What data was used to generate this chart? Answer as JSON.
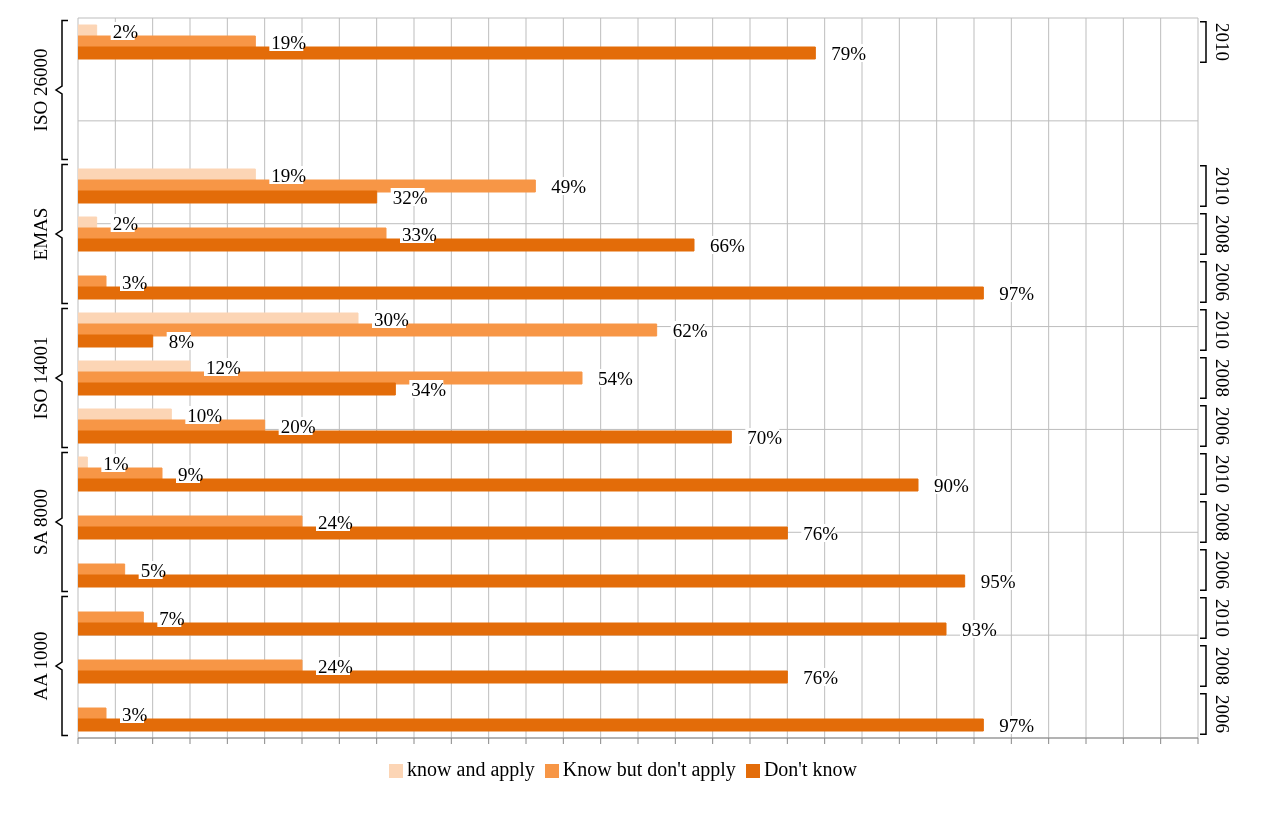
{
  "chart_data": {
    "type": "bar",
    "orientation": "horizontal",
    "categories": [
      "2010",
      null,
      null,
      "2010",
      "2008",
      "2006",
      "2010",
      "2008",
      "2006",
      "2010",
      "2008",
      "2006",
      "2010",
      "2008",
      "2006"
    ],
    "annotations": [
      "ISO 26000",
      "EMAS",
      "ISO 14001",
      "SA 8000",
      "AA 1000"
    ],
    "series": [
      {
        "name": "know and apply",
        "color": "#fcd5b5",
        "values": [
          2,
          null,
          null,
          19,
          2,
          null,
          30,
          12,
          10,
          1,
          null,
          null,
          null,
          null,
          null
        ],
        "value_labels": [
          "2%",
          null,
          null,
          "19%",
          "2%",
          null,
          "30%",
          "12%",
          "10%",
          "1%",
          null,
          null,
          null,
          null,
          null
        ]
      },
      {
        "name": "Know but don't apply",
        "color": "#f79646",
        "values": [
          19,
          null,
          null,
          49,
          33,
          3,
          62,
          54,
          20,
          9,
          24,
          5,
          7,
          24,
          3
        ],
        "value_labels": [
          "19%",
          null,
          null,
          "49%",
          "33%",
          "3%",
          "62%",
          "54%",
          "20%",
          "9%",
          "24%",
          "5%",
          "7%",
          "24%",
          "3%"
        ]
      },
      {
        "name": "Don't know",
        "color": "#e36c09",
        "values": [
          79,
          null,
          null,
          32,
          66,
          97,
          8,
          34,
          70,
          90,
          76,
          95,
          93,
          76,
          97
        ],
        "value_labels": [
          "79%",
          null,
          null,
          "32%",
          "66%",
          "97%",
          "8%",
          "34%",
          "70%",
          "90%",
          "76%",
          "95%",
          "93%",
          "76%",
          "97%"
        ]
      }
    ],
    "xlim": [
      0,
      120
    ],
    "xticks": [
      {
        "value": 0,
        "label": null
      },
      {
        "value": 4,
        "label": null
      },
      {
        "value": 8,
        "label": null
      },
      {
        "value": 12,
        "label": null
      },
      {
        "value": 16,
        "label": null
      },
      {
        "value": 20,
        "label": null
      },
      {
        "value": 24,
        "label": null
      },
      {
        "value": 28,
        "label": null
      },
      {
        "value": 32,
        "label": null
      },
      {
        "value": 36,
        "label": null
      },
      {
        "value": 40,
        "label": null
      },
      {
        "value": 44,
        "label": null
      },
      {
        "value": 48,
        "label": null
      },
      {
        "value": 52,
        "label": null
      },
      {
        "value": 56,
        "label": null
      },
      {
        "value": 60,
        "label": null
      },
      {
        "value": 64,
        "label": null
      },
      {
        "value": 68,
        "label": null
      },
      {
        "value": 72,
        "label": null
      },
      {
        "value": 76,
        "label": null
      },
      {
        "value": 80,
        "label": null
      },
      {
        "value": 84,
        "label": null
      },
      {
        "value": 88,
        "label": null
      },
      {
        "value": 92,
        "label": null
      },
      {
        "value": 96,
        "label": null
      },
      {
        "value": 100,
        "label": null
      },
      {
        "value": 104,
        "label": null
      },
      {
        "value": 108,
        "label": null
      },
      {
        "value": 112,
        "label": null
      },
      {
        "value": 116,
        "label": null
      },
      {
        "value": 120,
        "label": null
      }
    ],
    "grid": true,
    "legend": "bottom",
    "tick_labels": "y"
  }
}
